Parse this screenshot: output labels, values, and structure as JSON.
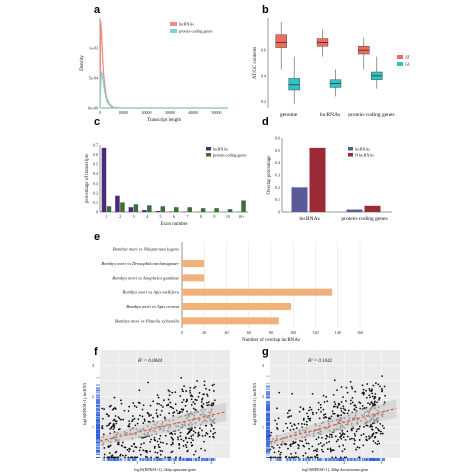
{
  "chart_data": [
    {
      "panel": "a",
      "type": "line",
      "xlabel": "Transcript length",
      "ylabel": "Density",
      "xticks": [
        "0",
        "10000",
        "20000",
        "30000",
        "40000",
        "50000"
      ],
      "yticks": [
        "0e+00",
        "5e-04",
        "1e-03"
      ],
      "xlim": [
        0,
        55000
      ],
      "ylim": [
        0,
        0.0015
      ],
      "legend_position": "top-right",
      "grid": false,
      "series": [
        {
          "name": "lncRNAs",
          "color": "#f28a80",
          "x": [
            0,
            300,
            600,
            900,
            1200,
            1500,
            2000,
            2500,
            3000,
            4000,
            5000,
            6000,
            8000,
            10000,
            20000,
            30000,
            40000,
            55000
          ],
          "y": [
            0.0,
            0.00145,
            0.0013,
            0.00105,
            0.0008,
            0.0006,
            0.0004,
            0.00025,
            0.00015,
            7e-05,
            3e-05,
            1e-05,
            5e-06,
            0.0,
            0.0,
            0.0,
            0.0,
            0.0
          ]
        },
        {
          "name": "protein-coding genes",
          "color": "#7fd3d8",
          "x": [
            0,
            300,
            600,
            900,
            1200,
            1500,
            2000,
            2500,
            3000,
            4000,
            5000,
            6000,
            8000,
            10000,
            20000,
            30000,
            40000,
            55000
          ],
          "y": [
            0.0,
            0.00035,
            0.0006,
            0.00058,
            0.0005,
            0.0004,
            0.00028,
            0.00018,
            0.00011,
            5e-05,
            2e-05,
            1e-05,
            5e-06,
            0.0,
            0.0,
            0.0,
            0.0,
            0.0
          ]
        }
      ]
    },
    {
      "panel": "b",
      "type": "box",
      "xlabel": "",
      "ylabel": "AT/GC contents",
      "yticks": [
        "0.2",
        "0.4",
        "0.6"
      ],
      "ylim": [
        0.15,
        0.85
      ],
      "categories": [
        "genome",
        "lncRNAs",
        "protein-coding genes"
      ],
      "legend_position": "right",
      "series": [
        {
          "name": "AT",
          "color": "#f06a5e",
          "boxes": [
            {
              "whislo": 0.45,
              "q1": 0.62,
              "med": 0.66,
              "q3": 0.72,
              "whishi": 0.82
            },
            {
              "whislo": 0.55,
              "q1": 0.63,
              "med": 0.66,
              "q3": 0.69,
              "whishi": 0.76
            },
            {
              "whislo": 0.45,
              "q1": 0.57,
              "med": 0.6,
              "q3": 0.63,
              "whishi": 0.7
            }
          ]
        },
        {
          "name": "GC",
          "color": "#2ec4c4",
          "boxes": [
            {
              "whislo": 0.18,
              "q1": 0.29,
              "med": 0.33,
              "q3": 0.38,
              "whishi": 0.55
            },
            {
              "whislo": 0.24,
              "q1": 0.31,
              "med": 0.34,
              "q3": 0.37,
              "whishi": 0.45
            },
            {
              "whislo": 0.3,
              "q1": 0.37,
              "med": 0.4,
              "q3": 0.43,
              "whishi": 0.55
            }
          ]
        }
      ]
    },
    {
      "panel": "c",
      "type": "bar",
      "xlabel": "Exon number",
      "ylabel": "percentage of transcripts",
      "yticks": [
        "0",
        "0.1",
        "0.2",
        "0.3",
        "0.4",
        "0.5",
        "0.6",
        "0.7"
      ],
      "ylim": [
        0,
        0.7
      ],
      "categories": [
        "1",
        "2",
        "3",
        "4",
        "5",
        "6",
        "7",
        "8",
        "9",
        "10",
        "10+"
      ],
      "legend_position": "top-right",
      "series": [
        {
          "name": "lncRNAs",
          "color": "#4b2a7a",
          "values": [
            0.67,
            0.17,
            0.05,
            0.02,
            0.01,
            0.005,
            0.003,
            0.002,
            0.001,
            0.001,
            0.002
          ]
        },
        {
          "name": "protein-coding genes",
          "color": "#3a6e3a",
          "values": [
            0.06,
            0.1,
            0.08,
            0.07,
            0.06,
            0.05,
            0.05,
            0.04,
            0.04,
            0.03,
            0.12
          ]
        }
      ]
    },
    {
      "panel": "d",
      "type": "bar",
      "xlabel": "",
      "ylabel": "Overlap percentage",
      "yticks": [
        "0",
        "0.1",
        "0.2",
        "0.3",
        "0.4",
        "0.5",
        "0.6"
      ],
      "ylim": [
        0,
        0.6
      ],
      "categories": [
        "lncRNAs",
        "protein-coding genes"
      ],
      "legend_position": "top-left",
      "series": [
        {
          "name": "lncRNAs",
          "color": "#5a5a9a",
          "values": [
            0.2,
            0.02
          ]
        },
        {
          "name": "Ø lncRNAs",
          "color": "#9a2a35",
          "values": [
            0.52,
            0.05
          ]
        }
      ]
    },
    {
      "panel": "e",
      "type": "bar",
      "orientation": "horizontal",
      "xlabel": "Number of overlap lncRNAs",
      "ylabel": "",
      "xticks": [
        "0",
        "20",
        "40",
        "60",
        "80",
        "100",
        "120",
        "140",
        "160"
      ],
      "xlim": [
        0,
        160
      ],
      "grid": true,
      "categories": [
        "Bombyx mori vs Nilaparvata lugens",
        "Bombyx mori vs Drosophila melanogaster",
        "Bombyx mori vs Anopheles gambiae",
        "Bombyx mori vs Apis mellifera",
        "Bombyx mori vs Apis cerana",
        "Bombyx mori vs Platelia xylostella"
      ],
      "series": [
        {
          "name": "",
          "color": "#f2b07a",
          "values": [
            0,
            20,
            20,
            135,
            98,
            87
          ]
        }
      ]
    },
    {
      "panel": "f",
      "type": "scatter",
      "annotation": "R² = 0.0844",
      "xlabel": "log10(RPKM+1), 2kbp upstream gene",
      "ylabel": "log10(RPKM+1), lncRNA",
      "xticks": [
        "1",
        "2",
        "3"
      ],
      "yticks": [
        "1",
        "2",
        "3"
      ],
      "xlim": [
        0,
        3.5
      ],
      "ylim": [
        0,
        3.5
      ],
      "grid": true,
      "trend": {
        "slope": 0.28,
        "intercept": 0.55,
        "color": "#e05a3c"
      }
    },
    {
      "panel": "g",
      "type": "scatter",
      "annotation": "R² = 0.1042",
      "xlabel": "log10(RPKM+1), 2kbp downstream gene",
      "ylabel": "log10(RPKM+1), lncRNA",
      "xticks": [
        "1",
        "2",
        "3"
      ],
      "yticks": [
        "1",
        "2",
        "3"
      ],
      "xlim": [
        0,
        3.5
      ],
      "ylim": [
        0,
        3.5
      ],
      "grid": true,
      "trend": {
        "slope": 0.32,
        "intercept": 0.52,
        "color": "#e05a3c"
      }
    }
  ],
  "panel_labels": [
    "a",
    "b",
    "c",
    "d",
    "e",
    "f",
    "g"
  ]
}
